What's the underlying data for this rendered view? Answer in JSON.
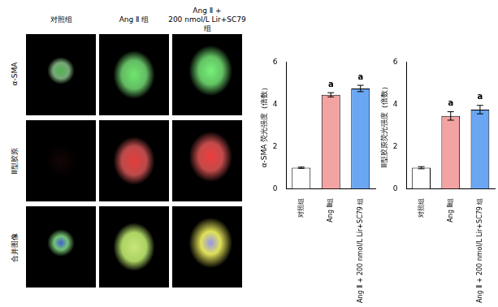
{
  "panels": {
    "columns": [
      "对照组",
      "Ang Ⅱ 组",
      "Ang Ⅱ +\n200 nmol/L Lir+SC79 组"
    ],
    "rows": [
      "α-SMA",
      "Ⅲ型胶原",
      "合并图像"
    ]
  },
  "chart_data": [
    {
      "type": "bar",
      "y_label": "α-SMA 荧光强度（倍数）",
      "categories": [
        "对照组",
        "Ang Ⅱ组",
        "Ang Ⅱ + 200 nmol/L Lir+SC79 组"
      ],
      "values": [
        1.0,
        4.45,
        4.75
      ],
      "errors": [
        0.03,
        0.1,
        0.15
      ],
      "sig_labels": [
        null,
        "a",
        "a"
      ],
      "colors": [
        "#ffffff",
        "#f4a3a3",
        "#6aa6f2"
      ],
      "ylim": [
        0,
        6
      ],
      "yticks": [
        0,
        2,
        4,
        6
      ],
      "grid": false
    },
    {
      "type": "bar",
      "y_label": "Ⅲ型胶原荧光强度（倍数）",
      "categories": [
        "对照组",
        "Ang Ⅱ组",
        "Ang Ⅱ + 200 nmol/L Lir+SC79 组"
      ],
      "values": [
        1.0,
        3.45,
        3.75
      ],
      "errors": [
        0.05,
        0.2,
        0.2
      ],
      "sig_labels": [
        null,
        "a",
        "a"
      ],
      "colors": [
        "#ffffff",
        "#f4a3a3",
        "#6aa6f2"
      ],
      "ylim": [
        0,
        6
      ],
      "yticks": [
        0,
        2,
        4,
        6
      ],
      "grid": false
    }
  ]
}
